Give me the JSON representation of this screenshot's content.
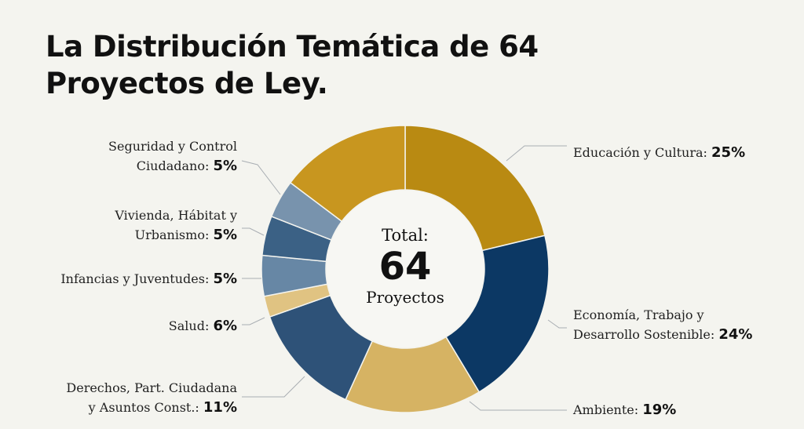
{
  "chart_data": {
    "type": "pie",
    "title": "La Distribución Temática de 64 Proyectos de Ley.",
    "title_lines": [
      "La Distribución Temática de 64",
      "Proyectos de Ley."
    ],
    "center": {
      "line1": "Total:",
      "line2": "64",
      "line3": "Proyectos"
    },
    "slices": [
      {
        "label_lines": [
          "Educación y Cultura:"
        ],
        "value": 25,
        "pct_text": "25%",
        "color": "#b98a12"
      },
      {
        "label_lines": [
          "Economía, Trabajo y",
          "Desarrollo Sostenible:"
        ],
        "value": 24,
        "pct_text": "24%",
        "color": "#0c3864"
      },
      {
        "label_lines": [
          "Ambiente:"
        ],
        "value": 19,
        "pct_text": "19%",
        "color": "#d6b363"
      },
      {
        "label_lines": [
          "Derechos, Part. Ciudadana",
          "y Asuntos Const.:"
        ],
        "value": 11,
        "pct_text": "11%",
        "color": "#2e5278"
      },
      {
        "label_lines": [
          "Salud:"
        ],
        "value": 6,
        "pct_text": "6%",
        "color": "#e0c382"
      },
      {
        "label_lines": [
          "Infancias y Juventudes:"
        ],
        "value": 5,
        "pct_text": "5%",
        "color": "#6787a5"
      },
      {
        "label_lines": [
          "Vivienda, Hábitat y",
          "Urbanismo:"
        ],
        "value": 5,
        "pct_text": "5%",
        "color": "#3b6185"
      },
      {
        "label_lines": [
          "Seguridad y Control",
          "Ciudadano:"
        ],
        "value": 5,
        "pct_text": "5%",
        "color": "#7893ad"
      }
    ],
    "unlabeled_slice_color": "#c8961f",
    "background": "#f4f4ef"
  }
}
